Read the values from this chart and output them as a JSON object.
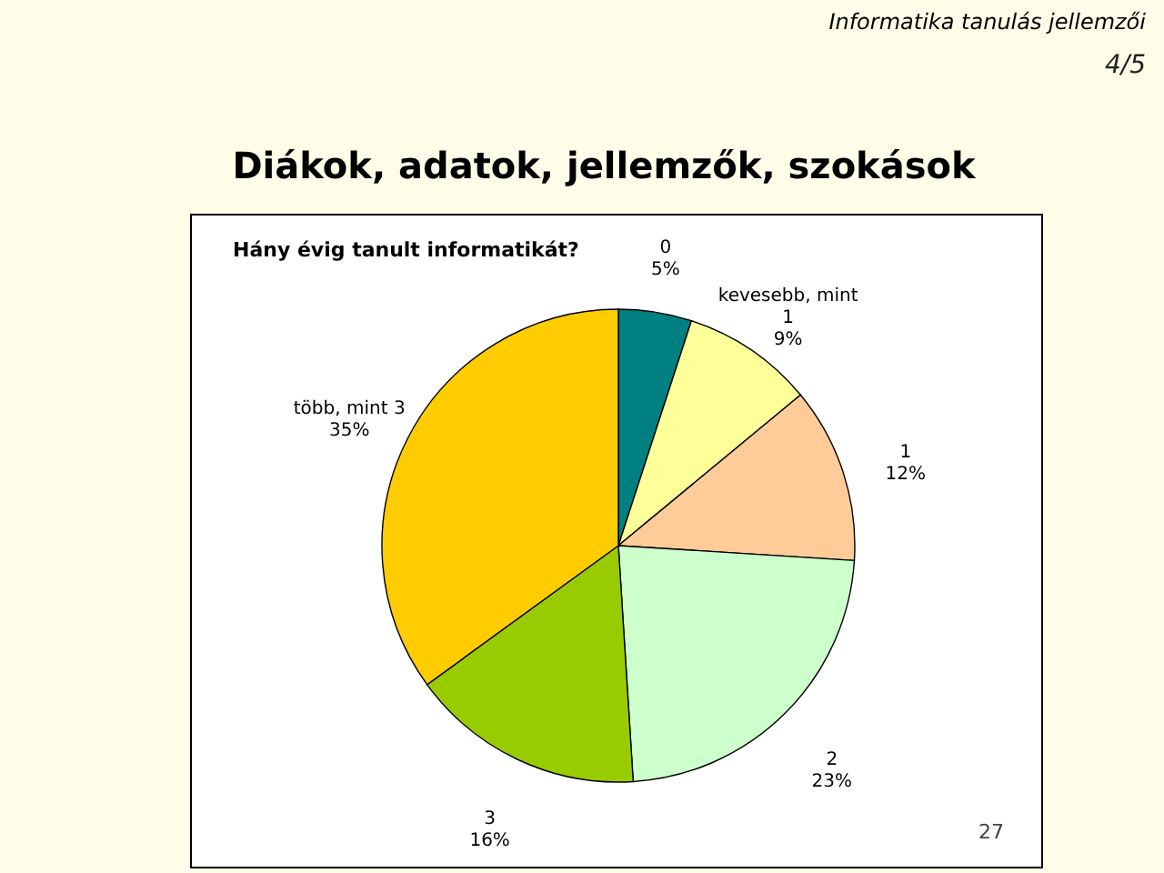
{
  "chart_data": {
    "type": "pie",
    "title": "Diákok, adatok, jellemzők, szokások",
    "subtitle": "Hány évig tanult informatikát?",
    "categories": [
      "0",
      "kevesebb, mint 1",
      "1",
      "2",
      "3",
      "több, mint 3"
    ],
    "values": [
      5,
      9,
      12,
      23,
      16,
      35
    ],
    "value_labels": [
      "5%",
      "9%",
      "12%",
      "23%",
      "16%",
      "35%"
    ],
    "colors": [
      "#008080",
      "#ffff99",
      "#ffcc99",
      "#ccffcc",
      "#99cc00",
      "#ffcc00"
    ],
    "annotations": [
      "Informatika tanulás jellemzői",
      "4/5",
      "27"
    ]
  }
}
